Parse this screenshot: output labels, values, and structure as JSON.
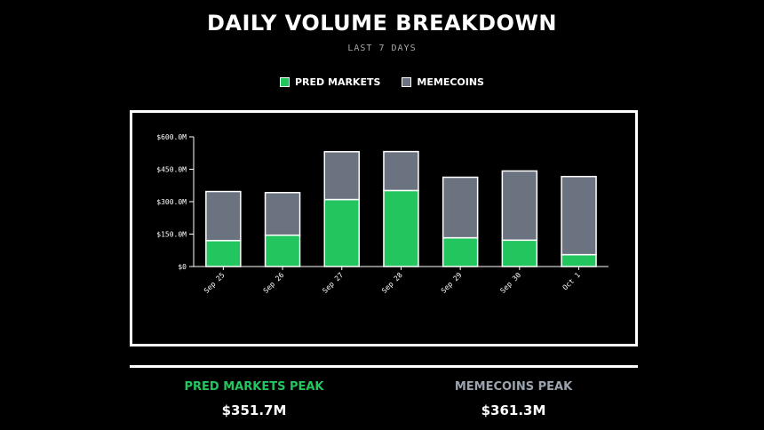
{
  "header": {
    "title": "DAILY VOLUME BREAKDOWN",
    "subtitle": "LAST 7 DAYS"
  },
  "legend": [
    {
      "label": "PRED MARKETS",
      "color": "#22c55e"
    },
    {
      "label": "MEMECOINS",
      "color": "#6b7280"
    }
  ],
  "colors": {
    "pred": "#22c55e",
    "meme": "#6b7280",
    "meme_label": "#9ca3af",
    "background": "#000000",
    "stroke": "#ffffff"
  },
  "chart_data": {
    "type": "bar",
    "stacked": true,
    "categories": [
      "Sep 25",
      "Sep 26",
      "Sep 27",
      "Sep 28",
      "Sep 29",
      "Sep 30",
      "Oct 1"
    ],
    "series": [
      {
        "name": "PRED MARKETS",
        "values": [
          120,
          145,
          310,
          351.7,
          133,
          122,
          55
        ]
      },
      {
        "name": "MEMECOINS",
        "values": [
          227,
          197,
          221,
          180,
          280,
          320,
          361.3
        ]
      }
    ],
    "ylim": [
      0,
      600
    ],
    "yticks": [
      {
        "value": 0,
        "label": "$0"
      },
      {
        "value": 150,
        "label": "$150.0M"
      },
      {
        "value": 300,
        "label": "$300.0M"
      },
      {
        "value": 450,
        "label": "$450.0M"
      },
      {
        "value": 600,
        "label": "$600.0M"
      }
    ],
    "grid": false,
    "legend_position": "top-center"
  },
  "summary": {
    "pred_peak_label": "PRED MARKETS PEAK",
    "pred_peak_value": "$351.7M",
    "meme_peak_label": "MEMECOINS PEAK",
    "meme_peak_value": "$361.3M"
  }
}
